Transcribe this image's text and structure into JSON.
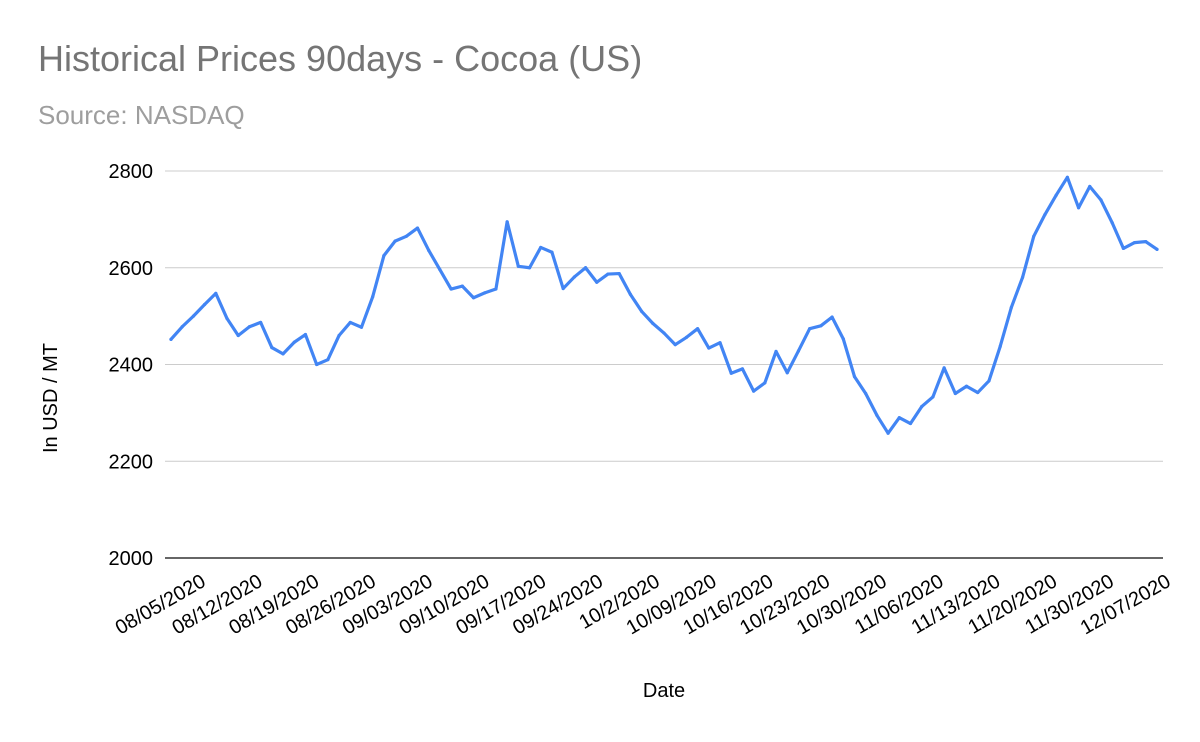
{
  "chart_data": {
    "type": "line",
    "title": "Historical Prices 90days - Cocoa (US)",
    "subtitle": "Source: NASDAQ",
    "xlabel": "Date",
    "ylabel": "In USD / MT",
    "ylim": [
      2000,
      2800
    ],
    "yticks": [
      2000,
      2200,
      2400,
      2600,
      2800
    ],
    "grid": true,
    "legend": "none",
    "x_tick_labels": [
      "08/05/2020",
      "08/12/2020",
      "08/19/2020",
      "08/26/2020",
      "09/03/2020",
      "09/10/2020",
      "09/17/2020",
      "09/24/2020",
      "10/2/2020",
      "10/09/2020",
      "10/16/2020",
      "10/23/2020",
      "10/30/2020",
      "11/06/2020",
      "11/13/2020",
      "11/20/2020",
      "11/30/2020",
      "12/07/2020"
    ],
    "series": [
      {
        "color": "#4285f4",
        "values": [
          2452,
          2478,
          2500,
          2524,
          2547,
          2495,
          2460,
          2478,
          2487,
          2435,
          2422,
          2446,
          2462,
          2400,
          2410,
          2460,
          2487,
          2477,
          2540,
          2625,
          2655,
          2665,
          2682,
          2636,
          2596,
          2556,
          2562,
          2538,
          2548,
          2556,
          2695,
          2603,
          2600,
          2642,
          2632,
          2557,
          2581,
          2600,
          2570,
          2587,
          2588,
          2545,
          2510,
          2485,
          2465,
          2441,
          2456,
          2474,
          2434,
          2445,
          2382,
          2391,
          2345,
          2362,
          2427,
          2383,
          2428,
          2474,
          2480,
          2498,
          2453,
          2375,
          2340,
          2295,
          2258,
          2290,
          2278,
          2313,
          2333,
          2393,
          2340,
          2355,
          2342,
          2366,
          2437,
          2518,
          2580,
          2665,
          2710,
          2750,
          2787,
          2724,
          2768,
          2740,
          2693,
          2640,
          2652,
          2654,
          2638
        ]
      }
    ]
  }
}
